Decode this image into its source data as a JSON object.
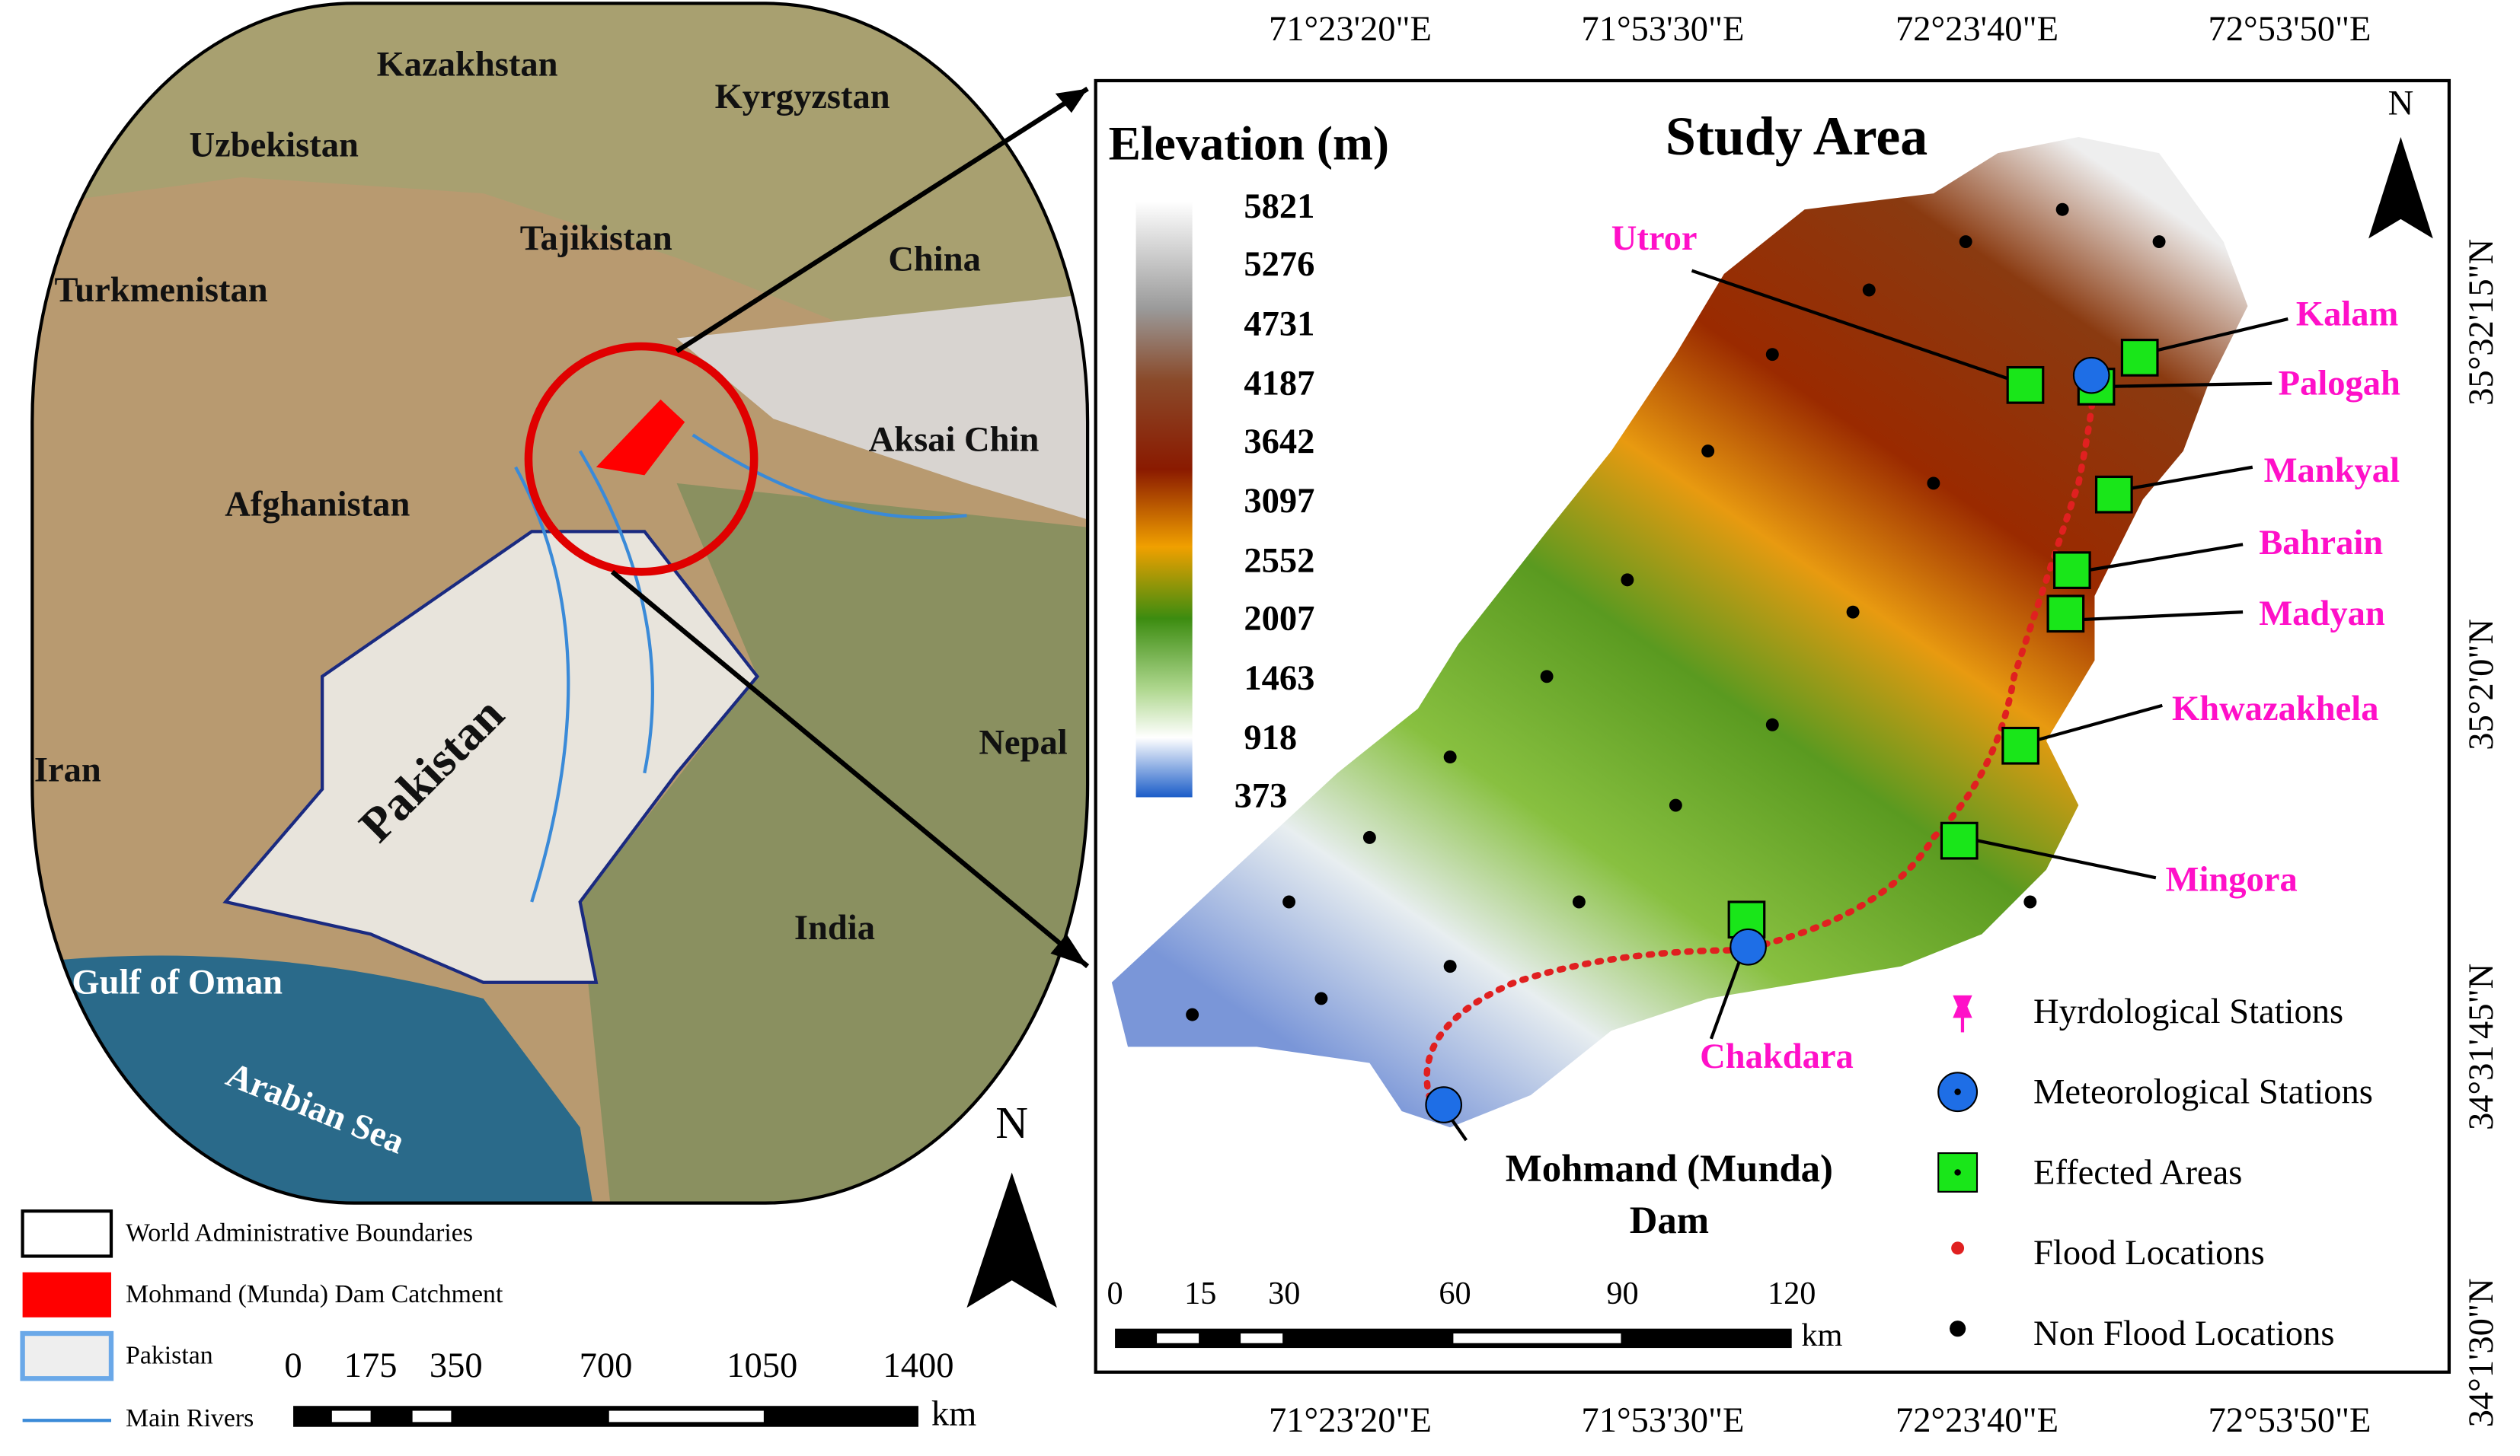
{
  "left_map": {
    "countries": [
      "Kazakhstan",
      "Kyrgyzstan",
      "Uzbekistan",
      "Tajikistan",
      "Turkmenistan",
      "China",
      "Afghanistan",
      "Aksai Chin",
      "Iran",
      "Pakistan",
      "Nepal",
      "India"
    ],
    "water": [
      "Gulf of Oman",
      "Arabian Sea"
    ],
    "north": "N",
    "legend": [
      "World Administrative Boundaries",
      "Mohmand (Munda) Dam Catchment",
      "Pakistan",
      "Main Rivers"
    ],
    "scale": {
      "ticks": [
        0,
        175,
        350,
        700,
        1050,
        1400
      ],
      "unit": "km"
    }
  },
  "right_map": {
    "title": "Study Area",
    "legend_title": "Elevation (m)",
    "elevation_values": [
      5821,
      5276,
      4731,
      4187,
      3642,
      3097,
      2552,
      2007,
      1463,
      918,
      373
    ],
    "places": [
      "Utror",
      "Kalam",
      "Palogah",
      "Mankyal",
      "Bahrain",
      "Madyan",
      "Khwazakhela",
      "Mingora",
      "Chakdara"
    ],
    "dam_label": [
      "Mohmand (Munda)",
      "Dam"
    ],
    "north": "N",
    "legend": [
      "Hyrdological Stations",
      "Meteorological Stations",
      "Effected Areas",
      "Flood Locations",
      "Non Flood Locations"
    ],
    "scale": {
      "ticks": [
        0,
        15,
        30,
        60,
        90,
        120
      ],
      "unit": "km"
    },
    "lon_labels": [
      "71°23'20\"E",
      "71°53'30\"E",
      "72°23'40\"E",
      "72°53'50\"E"
    ],
    "lat_labels": [
      "35°32'15\"N",
      "35°2'0\"N",
      "34°31'45\"N",
      "34°1'30\"N"
    ]
  }
}
